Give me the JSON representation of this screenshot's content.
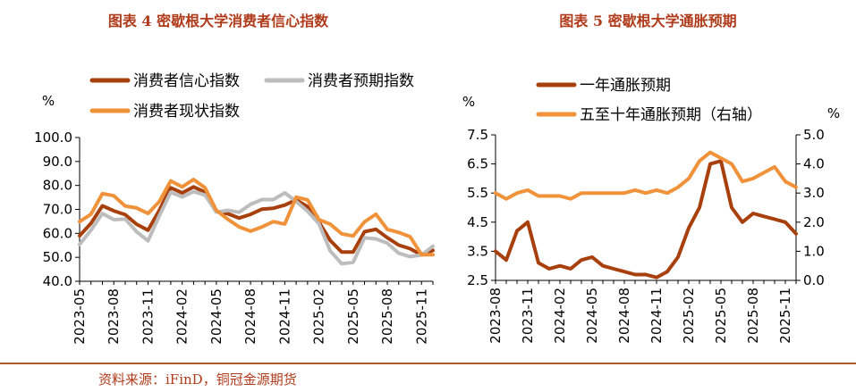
{
  "source_note": "资料来源：iFinD，铜冠金源期货",
  "chart_data": [
    {
      "type": "line",
      "title": "图表 4  密歇根大学消费者信心指数",
      "ylabel": "%",
      "ylim": [
        40,
        100
      ],
      "yticks": [
        "40.0",
        "50.0",
        "60.0",
        "70.0",
        "80.0",
        "90.0",
        "100.0"
      ],
      "xlabels": [
        "2023-05",
        "2023-08",
        "2023-11",
        "2024-02",
        "2024-05",
        "2024-08",
        "2024-11",
        "2025-02",
        "2025-05",
        "2025-08",
        "2025-11"
      ],
      "x": [
        "2023-05",
        "2023-06",
        "2023-07",
        "2023-08",
        "2023-09",
        "2023-10",
        "2023-11",
        "2023-12",
        "2024-01",
        "2024-02",
        "2024-03",
        "2024-04",
        "2024-05",
        "2024-06",
        "2024-07",
        "2024-08",
        "2024-09",
        "2024-10",
        "2024-11",
        "2024-12",
        "2025-01",
        "2025-02",
        "2025-03",
        "2025-04",
        "2025-05",
        "2025-06",
        "2025-07",
        "2025-08",
        "2025-09",
        "2025-10",
        "2025-11",
        "2025-12"
      ],
      "legend_position": "top",
      "series": [
        {
          "name": "消费者信心指数",
          "color": "#a8400e",
          "width": 4,
          "values": [
            59.0,
            64.2,
            71.5,
            69.4,
            67.8,
            63.8,
            61.3,
            69.7,
            79.0,
            76.9,
            79.4,
            77.2,
            69.1,
            68.2,
            66.4,
            67.9,
            70.1,
            70.5,
            71.8,
            74.0,
            71.1,
            64.7,
            57.0,
            52.2,
            52.2,
            60.7,
            61.7,
            58.2,
            55.1,
            53.6,
            51.0,
            52.9
          ]
        },
        {
          "name": "消费者预期指数",
          "color": "#bdbdbd",
          "width": 4,
          "values": [
            55.4,
            61.3,
            68.3,
            65.7,
            66.0,
            60.7,
            56.9,
            67.4,
            77.1,
            75.2,
            77.4,
            76.0,
            68.8,
            69.6,
            68.8,
            72.1,
            74.1,
            74.1,
            76.9,
            73.3,
            69.3,
            64.0,
            52.6,
            47.3,
            47.9,
            58.1,
            57.7,
            55.9,
            51.7,
            50.3,
            51.0,
            54.6
          ]
        },
        {
          "name": "消费者现状指数",
          "color": "#f0923a",
          "width": 4,
          "values": [
            64.9,
            68.0,
            76.6,
            75.7,
            71.4,
            70.6,
            68.3,
            73.3,
            81.9,
            79.4,
            82.5,
            79.0,
            69.6,
            65.9,
            62.7,
            60.9,
            62.7,
            64.9,
            63.9,
            75.1,
            74.0,
            65.7,
            63.8,
            59.8,
            58.9,
            64.8,
            68.0,
            61.7,
            60.4,
            58.6,
            51.1,
            51.1
          ]
        }
      ]
    },
    {
      "type": "line",
      "title": "图表 5  密歇根大学通胀预期",
      "ylabel": "%",
      "y2label": "%",
      "ylim": [
        2.5,
        7.5
      ],
      "y2lim": [
        0.0,
        5.0
      ],
      "yticks": [
        "2.5",
        "3.5",
        "4.5",
        "5.5",
        "6.5",
        "7.5"
      ],
      "y2ticks": [
        "0.0",
        "1.0",
        "2.0",
        "3.0",
        "4.0",
        "5.0"
      ],
      "xlabels": [
        "2023-08",
        "2023-11",
        "2024-02",
        "2024-05",
        "2024-08",
        "2024-11",
        "2025-02",
        "2025-05",
        "2025-08",
        "2025-11"
      ],
      "x": [
        "2023-08",
        "2023-09",
        "2023-10",
        "2023-11",
        "2023-12",
        "2024-01",
        "2024-02",
        "2024-03",
        "2024-04",
        "2024-05",
        "2024-06",
        "2024-07",
        "2024-08",
        "2024-09",
        "2024-10",
        "2024-11",
        "2024-12",
        "2025-01",
        "2025-02",
        "2025-03",
        "2025-04",
        "2025-05",
        "2025-06",
        "2025-07",
        "2025-08",
        "2025-09",
        "2025-10",
        "2025-11",
        "2025-12"
      ],
      "legend_position": "top",
      "series": [
        {
          "name": "一年通胀预期",
          "axis": "left",
          "color": "#a8400e",
          "width": 4,
          "values": [
            3.5,
            3.2,
            4.2,
            4.5,
            3.1,
            2.9,
            3.0,
            2.9,
            3.2,
            3.3,
            3.0,
            2.9,
            2.8,
            2.7,
            2.7,
            2.6,
            2.8,
            3.3,
            4.3,
            5.0,
            6.5,
            6.6,
            5.0,
            4.5,
            4.8,
            4.7,
            4.6,
            4.5,
            4.1
          ]
        },
        {
          "name": "五至十年通胀预期（右轴）",
          "axis": "right",
          "color": "#f0923a",
          "width": 4,
          "values": [
            3.0,
            2.8,
            3.0,
            3.1,
            2.9,
            2.9,
            2.9,
            2.8,
            3.0,
            3.0,
            3.0,
            3.0,
            3.0,
            3.1,
            3.0,
            3.1,
            3.0,
            3.2,
            3.5,
            4.1,
            4.4,
            4.2,
            4.0,
            3.4,
            3.5,
            3.7,
            3.9,
            3.4,
            3.2
          ]
        }
      ]
    }
  ]
}
